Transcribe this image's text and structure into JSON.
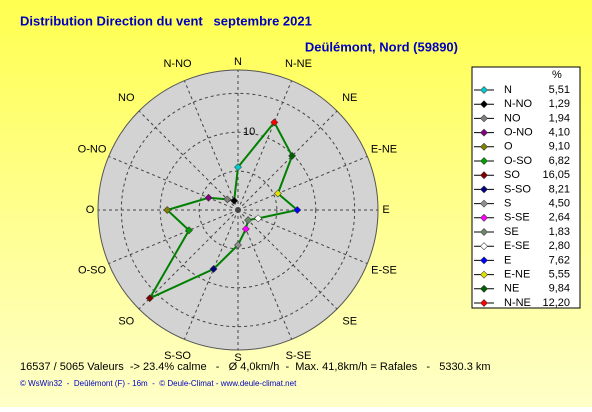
{
  "chart_data": {
    "type": "radar",
    "title": "Distribution Direction du vent   septembre 2021",
    "subtitle": "Deülémont, Nord (59890)",
    "unit_header": "%",
    "categories": [
      "N",
      "N-NO",
      "NO",
      "O-NO",
      "O",
      "O-SO",
      "SO",
      "S-SO",
      "S",
      "S-SE",
      "SE",
      "E-SE",
      "E",
      "E-NE",
      "NE",
      "N-NE"
    ],
    "values": [
      5.51,
      1.29,
      1.94,
      4.1,
      9.1,
      6.82,
      16.05,
      8.21,
      4.5,
      2.64,
      1.83,
      2.8,
      7.62,
      5.55,
      9.84,
      12.2
    ],
    "value_labels": [
      "5,51",
      "1,29",
      "1,94",
      "4,10",
      "9,10",
      "6,82",
      "16,05",
      "8,21",
      "4,50",
      "2,64",
      "1,83",
      "2,80",
      "7,62",
      "5,55",
      "9,84",
      "12,20"
    ],
    "colors": [
      "#00cccc",
      "#000000",
      "#808080",
      "#800080",
      "#808000",
      "#00a000",
      "#800000",
      "#000080",
      "#909090",
      "#ff00ff",
      "#6a8a6a",
      "#ffffff",
      "#0000ff",
      "#e0e000",
      "#006000",
      "#ff0000"
    ],
    "line_color": "#008000",
    "ylim": [
      0,
      18
    ],
    "yticks": [
      10
    ],
    "rgrid": [
      5,
      10,
      15
    ],
    "footer": "16537 / 5065 Valeurs  -> 23.4% calme   -   Ø 4,0km/h  -  Max. 41,8km/h = Rafales   -   5330.3 km",
    "credit": "© WsWin32  -  Deûlémont (F) - 16m  -  © Deule-Climat - www.deule-climat.net"
  }
}
